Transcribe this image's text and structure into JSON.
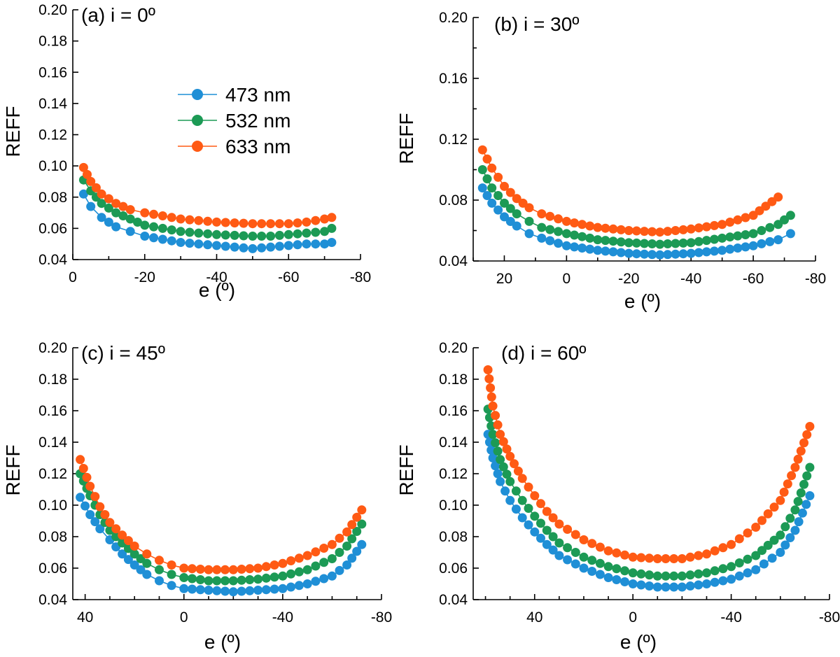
{
  "colors": {
    "s473": "#1f8fd6",
    "s532": "#1c9a55",
    "s633": "#ff5a14"
  },
  "chart_data": [
    {
      "type": "line",
      "panel_label": "(a) i = 0º",
      "xlabel": "e (º)",
      "ylabel": "REFF",
      "xlim": [
        0,
        -80
      ],
      "ylim": [
        0.04,
        0.2
      ],
      "x_ticks": [
        "0",
        "-20",
        "-40",
        "-60",
        "-80"
      ],
      "y_ticks": [
        "0.04",
        "0.06",
        "0.08",
        "0.10",
        "0.12",
        "0.14",
        "0.16",
        "0.18",
        "0.20"
      ],
      "legend": [
        "473 nm",
        "532 nm",
        "633 nm"
      ],
      "series": [
        {
          "name": "473 nm",
          "x": [
            -3,
            -5,
            -8,
            -12,
            -16,
            -20,
            -25,
            -30,
            -40,
            -50,
            -55,
            -60,
            -65,
            -70,
            -72
          ],
          "y": [
            0.082,
            0.074,
            0.067,
            0.061,
            0.058,
            0.055,
            0.053,
            0.051,
            0.049,
            0.047,
            0.048,
            0.049,
            0.05,
            0.05,
            0.051
          ]
        },
        {
          "name": "532 nm",
          "x": [
            -3,
            -5,
            -8,
            -12,
            -16,
            -20,
            -25,
            -30,
            -40,
            -50,
            -55,
            -60,
            -65,
            -70,
            -72
          ],
          "y": [
            0.091,
            0.084,
            0.076,
            0.07,
            0.066,
            0.062,
            0.06,
            0.058,
            0.056,
            0.055,
            0.055,
            0.056,
            0.057,
            0.058,
            0.06
          ]
        },
        {
          "name": "633 nm",
          "x": [
            -3,
            -5,
            -8,
            -12,
            -16,
            -20,
            -25,
            -30,
            -40,
            -50,
            -55,
            -60,
            -65,
            -70,
            -72
          ],
          "y": [
            0.099,
            0.09,
            0.082,
            0.076,
            0.072,
            0.07,
            0.068,
            0.066,
            0.064,
            0.063,
            0.063,
            0.063,
            0.064,
            0.066,
            0.067
          ]
        }
      ]
    },
    {
      "type": "line",
      "panel_label": "(b) i = 30º",
      "xlabel": "e (º)",
      "ylabel": "REFF",
      "xlim": [
        30,
        -80
      ],
      "ylim": [
        0.04,
        0.2
      ],
      "x_ticks": [
        "20",
        "0",
        "-20",
        "-40",
        "-60",
        "-80"
      ],
      "y_ticks": [
        "0.04",
        "0.08",
        "0.12",
        "0.16",
        "0.20"
      ],
      "series": [
        {
          "name": "473 nm",
          "x": [
            27,
            24,
            20,
            16,
            12,
            8,
            0,
            -10,
            -20,
            -30,
            -40,
            -50,
            -60,
            -68,
            -72
          ],
          "y": [
            0.088,
            0.078,
            0.069,
            0.063,
            0.058,
            0.055,
            0.05,
            0.047,
            0.045,
            0.044,
            0.045,
            0.047,
            0.05,
            0.054,
            0.058
          ]
        },
        {
          "name": "532 nm",
          "x": [
            27,
            24,
            20,
            16,
            12,
            8,
            0,
            -10,
            -20,
            -30,
            -40,
            -50,
            -60,
            -68,
            -72
          ],
          "y": [
            0.1,
            0.088,
            0.078,
            0.071,
            0.066,
            0.062,
            0.058,
            0.054,
            0.052,
            0.051,
            0.052,
            0.055,
            0.058,
            0.064,
            0.07
          ]
        },
        {
          "name": "633 nm",
          "x": [
            27,
            24,
            20,
            16,
            12,
            8,
            0,
            -10,
            -20,
            -30,
            -40,
            -50,
            -60,
            -68
          ],
          "y": [
            0.113,
            0.101,
            0.089,
            0.081,
            0.075,
            0.071,
            0.066,
            0.062,
            0.06,
            0.059,
            0.061,
            0.064,
            0.07,
            0.082
          ]
        }
      ]
    },
    {
      "type": "line",
      "panel_label": "(c) i = 45º",
      "xlabel": "e (º)",
      "ylabel": "REFF",
      "xlim": [
        45,
        -80
      ],
      "ylim": [
        0.04,
        0.2
      ],
      "x_ticks": [
        "40",
        "0",
        "-40",
        "-80"
      ],
      "y_ticks": [
        "0.04",
        "0.06",
        "0.08",
        "0.10",
        "0.12",
        "0.14",
        "0.16",
        "0.18",
        "0.20"
      ],
      "series": [
        {
          "name": "473 nm",
          "x": [
            42,
            38,
            34,
            30,
            25,
            20,
            15,
            10,
            5,
            0,
            -10,
            -20,
            -30,
            -40,
            -50,
            -60,
            -66,
            -72
          ],
          "y": [
            0.105,
            0.094,
            0.085,
            0.078,
            0.069,
            0.062,
            0.056,
            0.052,
            0.049,
            0.047,
            0.046,
            0.045,
            0.046,
            0.047,
            0.05,
            0.055,
            0.062,
            0.075
          ]
        },
        {
          "name": "532 nm",
          "x": [
            42,
            38,
            34,
            30,
            25,
            20,
            15,
            10,
            5,
            0,
            -10,
            -20,
            -30,
            -40,
            -50,
            -60,
            -66,
            -72
          ],
          "y": [
            0.12,
            0.106,
            0.094,
            0.084,
            0.076,
            0.069,
            0.063,
            0.059,
            0.056,
            0.054,
            0.052,
            0.052,
            0.053,
            0.055,
            0.059,
            0.066,
            0.074,
            0.088
          ]
        },
        {
          "name": "633 nm",
          "x": [
            42,
            38,
            34,
            30,
            25,
            20,
            15,
            10,
            5,
            0,
            -10,
            -20,
            -30,
            -40,
            -50,
            -60,
            -66,
            -72
          ],
          "y": [
            0.129,
            0.112,
            0.099,
            0.089,
            0.081,
            0.074,
            0.069,
            0.065,
            0.062,
            0.06,
            0.059,
            0.059,
            0.06,
            0.063,
            0.068,
            0.075,
            0.083,
            0.097
          ]
        }
      ]
    },
    {
      "type": "line",
      "panel_label": "(d) i = 60º",
      "xlabel": "e (º)",
      "ylabel": "REFF",
      "xlim": [
        65,
        -80
      ],
      "ylim": [
        0.04,
        0.2
      ],
      "x_ticks": [
        "40",
        "0",
        "-40",
        "-80"
      ],
      "y_ticks": [
        "0.04",
        "0.06",
        "0.08",
        "0.10",
        "0.12",
        "0.14",
        "0.16",
        "0.18",
        "0.20"
      ],
      "series": [
        {
          "name": "473 nm",
          "x": [
            59,
            57,
            54,
            50,
            45,
            40,
            35,
            30,
            20,
            10,
            0,
            -10,
            -20,
            -30,
            -40,
            -50,
            -60,
            -66,
            -72
          ],
          "y": [
            0.145,
            0.13,
            0.115,
            0.103,
            0.092,
            0.083,
            0.075,
            0.068,
            0.06,
            0.054,
            0.05,
            0.048,
            0.048,
            0.05,
            0.053,
            0.059,
            0.07,
            0.084,
            0.106
          ]
        },
        {
          "name": "532 nm",
          "x": [
            59,
            57,
            54,
            50,
            45,
            40,
            35,
            30,
            20,
            10,
            0,
            -10,
            -20,
            -30,
            -40,
            -50,
            -60,
            -66,
            -72
          ],
          "y": [
            0.161,
            0.145,
            0.129,
            0.115,
            0.103,
            0.093,
            0.084,
            0.076,
            0.067,
            0.061,
            0.057,
            0.055,
            0.055,
            0.057,
            0.061,
            0.068,
            0.081,
            0.097,
            0.124
          ]
        },
        {
          "name": "633 nm",
          "x": [
            59,
            57,
            54,
            50,
            45,
            40,
            35,
            30,
            20,
            10,
            0,
            -10,
            -20,
            -30,
            -40,
            -50,
            -60,
            -66,
            -72
          ],
          "y": [
            0.186,
            0.163,
            0.145,
            0.131,
            0.117,
            0.106,
            0.096,
            0.088,
            0.078,
            0.071,
            0.067,
            0.066,
            0.066,
            0.069,
            0.075,
            0.086,
            0.103,
            0.124,
            0.15
          ]
        }
      ]
    }
  ]
}
